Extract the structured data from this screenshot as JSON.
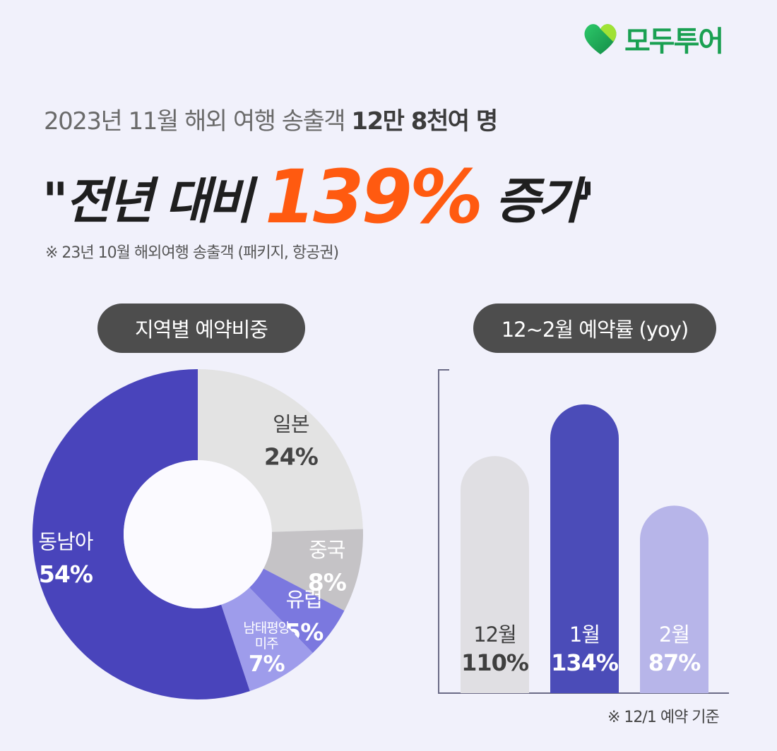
{
  "brand": {
    "name": "모두투어",
    "icon": "heart-logo-icon",
    "color": "#1aa052"
  },
  "header": {
    "subtitle_plain": "2023년 11월 해외 여행 송출객 ",
    "subtitle_bold": "12만 8천여 명",
    "headline_pre": "\"전년 대비 ",
    "headline_highlight": "139%",
    "headline_post": " 증가'",
    "note": "※ 23년 10월 해외여행 송출객 (패키지, 항공권)"
  },
  "colors": {
    "accent": "#ff5a10",
    "pill_bg": "#4d4d4d",
    "background": "#f1f1fb"
  },
  "chart_data": [
    {
      "type": "pie",
      "title": "지역별 예약비중",
      "slices": [
        {
          "label": "일본",
          "value": 24,
          "value_label": "24%",
          "color": "#e3e3e3",
          "text_color": "#444444"
        },
        {
          "label": "중국",
          "value": 8,
          "value_label": "8%",
          "color": "#c5c3c6",
          "text_color": "#ffffff"
        },
        {
          "label": "유럽",
          "value": 5,
          "value_label": "5%",
          "color": "#7b78df",
          "text_color": "#ffffff"
        },
        {
          "label": "남태평양 미주",
          "label_lines": [
            "남태평양",
            "미주"
          ],
          "value": 7,
          "value_label": "7%",
          "color": "#9e9ceb",
          "text_color": "#ffffff"
        },
        {
          "label": "동남아",
          "value": 54,
          "value_label": "54%",
          "color": "#4944bb",
          "text_color": "#ffffff"
        }
      ]
    },
    {
      "type": "bar",
      "title": "12~2월 예약률 (yoy)",
      "categories": [
        "12월",
        "1월",
        "2월"
      ],
      "values": [
        110,
        134,
        87
      ],
      "value_labels": [
        "110%",
        "134%",
        "87%"
      ],
      "colors": [
        "#e0dfe3",
        "#4b4cb8",
        "#b7b5e9"
      ],
      "text_colors": [
        "#3f3f3f",
        "#ffffff",
        "#ffffff"
      ],
      "ylim": [
        0,
        150
      ],
      "footnote": "※ 12/1 예약 기준"
    }
  ]
}
